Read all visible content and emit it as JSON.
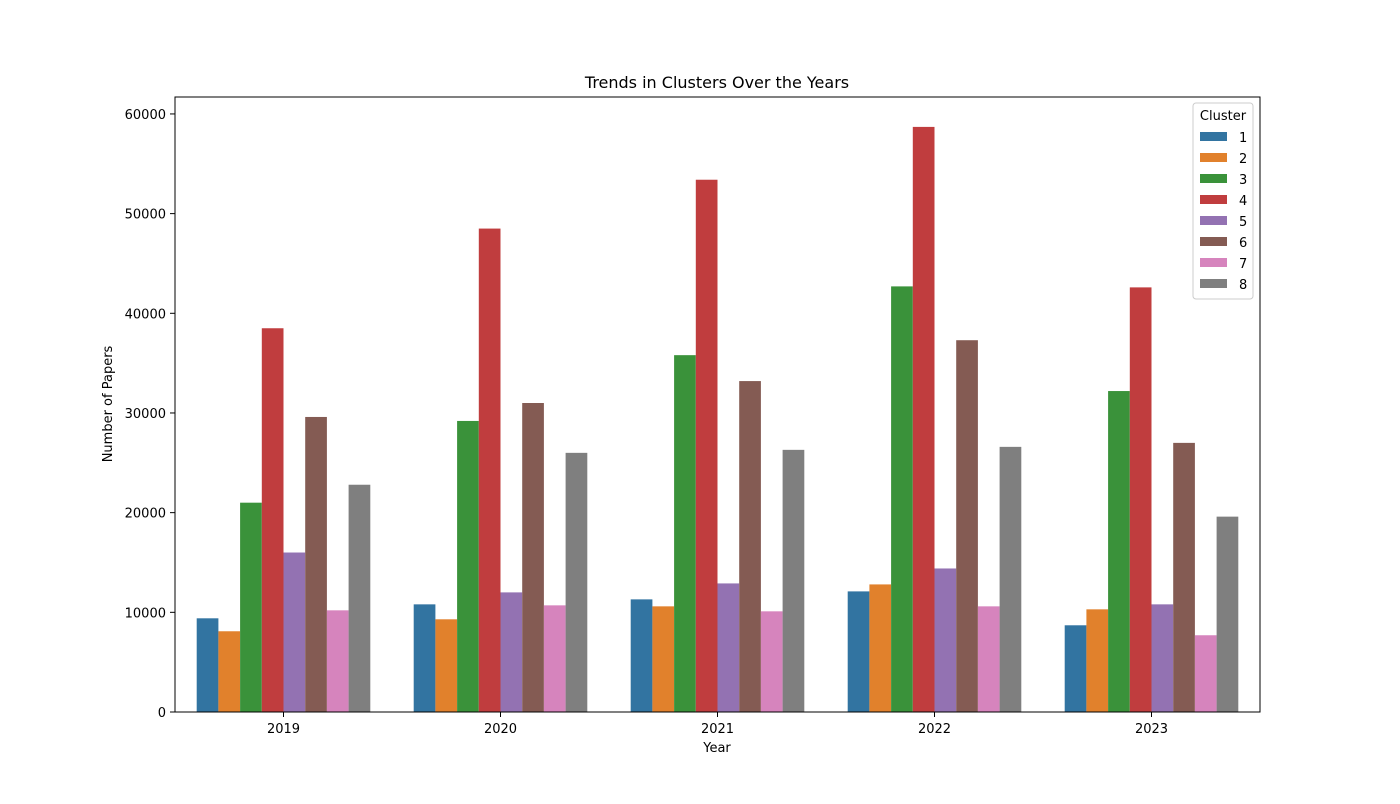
{
  "chart_data": {
    "type": "bar",
    "title": "Trends in Clusters Over the Years",
    "xlabel": "Year",
    "ylabel": "Number of Papers",
    "ylim": [
      0,
      61700
    ],
    "yticks": [
      0,
      10000,
      20000,
      30000,
      40000,
      50000,
      60000
    ],
    "grid": false,
    "legend": {
      "title": "Cluster",
      "position": "top-right"
    },
    "categories": [
      "2019",
      "2020",
      "2021",
      "2022",
      "2023"
    ],
    "series": [
      {
        "name": "1",
        "color": "#3274a1",
        "values": [
          9400,
          10800,
          11300,
          12100,
          8700
        ]
      },
      {
        "name": "2",
        "color": "#e1812c",
        "values": [
          8100,
          9300,
          10600,
          12800,
          10300
        ]
      },
      {
        "name": "3",
        "color": "#3a923a",
        "values": [
          21000,
          29200,
          35800,
          42700,
          32200
        ]
      },
      {
        "name": "4",
        "color": "#c03d3e",
        "values": [
          38500,
          48500,
          53400,
          58700,
          42600
        ]
      },
      {
        "name": "5",
        "color": "#9372b2",
        "values": [
          16000,
          12000,
          12900,
          14400,
          10800
        ]
      },
      {
        "name": "6",
        "color": "#845b53",
        "values": [
          29600,
          31000,
          33200,
          37300,
          27000
        ]
      },
      {
        "name": "7",
        "color": "#d684bd",
        "values": [
          10200,
          10700,
          10100,
          10600,
          7700
        ]
      },
      {
        "name": "8",
        "color": "#7f7f7f",
        "values": [
          22800,
          26000,
          26300,
          26600,
          19600
        ]
      }
    ]
  }
}
